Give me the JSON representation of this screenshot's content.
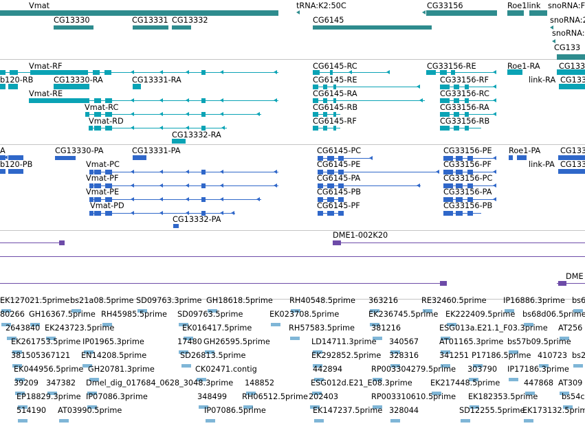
{
  "colors": {
    "gene": "#2e8c8e",
    "transcript": "#0aa3b5",
    "protein": "#2f67c9",
    "clone": "#6d4ba8",
    "est": "#7fb6d7",
    "separator": "#c4c4c4"
  },
  "genes": [
    {
      "label": "Vmat"
    },
    {
      "label": "tRNA:K2:50C"
    },
    {
      "label": "CG33156"
    },
    {
      "label": "Roe1link"
    },
    {
      "label": "snoRNA:F"
    },
    {
      "label": "CG13330"
    },
    {
      "label": "CG13331"
    },
    {
      "label": "CG13332"
    },
    {
      "label": "CG6145"
    },
    {
      "label": "snoRNA:2"
    },
    {
      "label": "snoRNA:"
    },
    {
      "label": "CG133"
    }
  ],
  "transcripts": [
    {
      "label": "Vmat-RF"
    },
    {
      "label": "CG6145-RC"
    },
    {
      "label": "CG33156-RE"
    },
    {
      "label": "Roe1-RA"
    },
    {
      "label": "CG133"
    },
    {
      "label": "b120-RB"
    },
    {
      "label": "CG13330-RA"
    },
    {
      "label": "CG13331-RA"
    },
    {
      "label": "CG6145-RE"
    },
    {
      "label": "CG33156-RF"
    },
    {
      "label": "link-RA"
    },
    {
      "label": "CG133"
    },
    {
      "label": "Vmat-RE"
    },
    {
      "label": "CG6145-RA"
    },
    {
      "label": "CG33156-RC"
    },
    {
      "label": "Vmat-RC"
    },
    {
      "label": "CG6145-RB"
    },
    {
      "label": "CG33156-RA"
    },
    {
      "label": "Vmat-RD"
    },
    {
      "label": "CG6145-RF"
    },
    {
      "label": "CG33156-RB"
    },
    {
      "label": "CG13332-RA"
    }
  ],
  "proteins": [
    {
      "label": "A"
    },
    {
      "label": "CG13330-PA"
    },
    {
      "label": "CG13331-PA"
    },
    {
      "label": "CG6145-PC"
    },
    {
      "label": "CG33156-PE"
    },
    {
      "label": "Roe1-PA"
    },
    {
      "label": "CG133"
    },
    {
      "label": "b120-PB"
    },
    {
      "label": "Vmat-PC"
    },
    {
      "label": "CG6145-PE"
    },
    {
      "label": "CG33156-PF"
    },
    {
      "label": "link-PA"
    },
    {
      "label": "CG133"
    },
    {
      "label": "Vmat-PF"
    },
    {
      "label": "CG6145-PA"
    },
    {
      "label": "CG33156-PC"
    },
    {
      "label": "Vmat-PE"
    },
    {
      "label": "CG6145-PB"
    },
    {
      "label": "CG33156-PA"
    },
    {
      "label": "Vmat-PD"
    },
    {
      "label": "CG6145-PF"
    },
    {
      "label": "CG33156-PB"
    },
    {
      "label": "CG13332-PA"
    }
  ],
  "clones": [
    {
      "label": "DME1-002K20"
    },
    {
      "label": "DME"
    }
  ],
  "ests": [
    {
      "label": "EK127021.5prime"
    },
    {
      "label": "bs21a08.5prime"
    },
    {
      "label": "SD09763.3prime"
    },
    {
      "label": "GH18618.5prime"
    },
    {
      "label": "RH40548.5prime"
    },
    {
      "label": "363216"
    },
    {
      "label": "RE32460.5prime"
    },
    {
      "label": "IP16886.3prime"
    },
    {
      "label": "bs6"
    },
    {
      "label": "80266"
    },
    {
      "label": "GH16367.5prime"
    },
    {
      "label": "RH45985.5prime"
    },
    {
      "label": "SD09763.5prime"
    },
    {
      "label": "EK023708.5prime"
    },
    {
      "label": "EK236745.5prime"
    },
    {
      "label": "EK222409.5prime"
    },
    {
      "label": "bs68d06.5prime"
    },
    {
      "label": "2643840"
    },
    {
      "label": "EK243723.5prime"
    },
    {
      "label": "EK016417.5prime"
    },
    {
      "label": "RH57583.5prime"
    },
    {
      "label": "381216"
    },
    {
      "label": "ESG013a.E21.1_F03.3prime"
    },
    {
      "label": "AT256"
    },
    {
      "label": "EK261753.5prime"
    },
    {
      "label": "IP01965.3prime"
    },
    {
      "label": "17480"
    },
    {
      "label": "GH26595.5prime"
    },
    {
      "label": "LD14711.3prime"
    },
    {
      "label": "340567"
    },
    {
      "label": "AT01165.3prime"
    },
    {
      "label": "bs57b09.5prime"
    },
    {
      "label": "381505367121"
    },
    {
      "label": "EN14208.5prime"
    },
    {
      "label": "SD26813.5prime"
    },
    {
      "label": "EK292852.5prime"
    },
    {
      "label": "328316"
    },
    {
      "label": "341251"
    },
    {
      "label": "P17186.5prime"
    },
    {
      "label": "410723"
    },
    {
      "label": "bs2"
    },
    {
      "label": "EK044956.5prime"
    },
    {
      "label": "GH20781.3prime"
    },
    {
      "label": "CK02471.contig"
    },
    {
      "label": "442894"
    },
    {
      "label": "RP003304279.5prime"
    },
    {
      "label": "303790"
    },
    {
      "label": "IP17186.3prime"
    },
    {
      "label": "39209"
    },
    {
      "label": "347382"
    },
    {
      "label": "Dmel_dig_017684_0628_3048.3prime"
    },
    {
      "label": "148852"
    },
    {
      "label": "ESG012d.E21_E08.3prime"
    },
    {
      "label": "EK217448.5prime"
    },
    {
      "label": "447868"
    },
    {
      "label": "AT309"
    },
    {
      "label": "EP18829.3prime"
    },
    {
      "label": "IP07086.3prime"
    },
    {
      "label": "348499"
    },
    {
      "label": "RH06512.5prime"
    },
    {
      "label": "202403"
    },
    {
      "label": "RP003310610.5prime"
    },
    {
      "label": "EK182353.5prime"
    },
    {
      "label": "bs54c"
    },
    {
      "label": "514190"
    },
    {
      "label": "AT03990.5prime"
    },
    {
      "label": "IP07086.5prime"
    },
    {
      "label": "EK147237.5prime"
    },
    {
      "label": "328044"
    },
    {
      "label": "SD12255.5prime"
    },
    {
      "label": "EK173132.5prime"
    }
  ]
}
